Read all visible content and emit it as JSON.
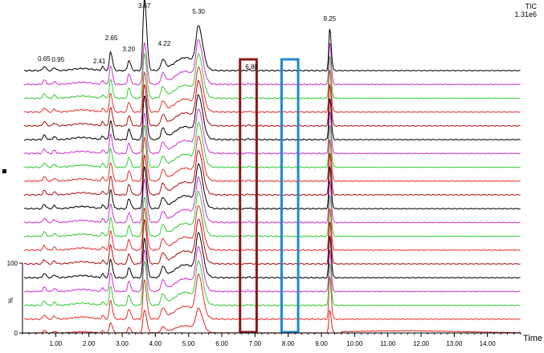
{
  "chart_data": {
    "type": "line",
    "title": "TIC",
    "subtitle": "1.31e6",
    "xlabel": "Time",
    "ylabel": "%",
    "xlim": [
      0.0,
      15.0
    ],
    "ylim": [
      0,
      100
    ],
    "x_ticks": [
      "1.00",
      "2.00",
      "3.00",
      "4.00",
      "5.00",
      "6.00",
      "7.00",
      "8.00",
      "9.00",
      "10.00",
      "11.00",
      "12.00",
      "13.00",
      "14.00"
    ],
    "y_ticks": [
      "0",
      "100"
    ],
    "grid": false,
    "trace_count": 20,
    "trace_colors": [
      "#000000",
      "#cc33cc",
      "#33cc33",
      "#e53030",
      "#aa1111"
    ],
    "peak_labels": [
      {
        "x": 0.65,
        "label": "0.65"
      },
      {
        "x": 0.95,
        "label": "0.95"
      },
      {
        "x": 2.41,
        "label": "2.41"
      },
      {
        "x": 2.65,
        "label": "2.65"
      },
      {
        "x": 3.2,
        "label": "3.20"
      },
      {
        "x": 3.67,
        "label": "3.67"
      },
      {
        "x": 4.22,
        "label": "4.22"
      },
      {
        "x": 5.3,
        "label": "5.30"
      },
      {
        "x": 6.8,
        "label": "6.80"
      },
      {
        "x": 9.25,
        "label": "9.25"
      }
    ],
    "peaks": [
      {
        "x": 0.65,
        "y": 6
      },
      {
        "x": 0.95,
        "y": 4
      },
      {
        "x": 2.41,
        "y": 5
      },
      {
        "x": 2.65,
        "y": 26
      },
      {
        "x": 3.2,
        "y": 14
      },
      {
        "x": 3.67,
        "y": 100
      },
      {
        "x": 4.22,
        "y": 14
      },
      {
        "x": 5.3,
        "y": 54
      },
      {
        "x": 6.8,
        "y": 1
      },
      {
        "x": 9.25,
        "y": 58
      }
    ],
    "highlight_regions": [
      {
        "x_start": 6.55,
        "x_end": 7.05,
        "color": "#8b1a1a"
      },
      {
        "x_start": 7.8,
        "x_end": 8.3,
        "color": "#1e88d2"
      }
    ]
  }
}
